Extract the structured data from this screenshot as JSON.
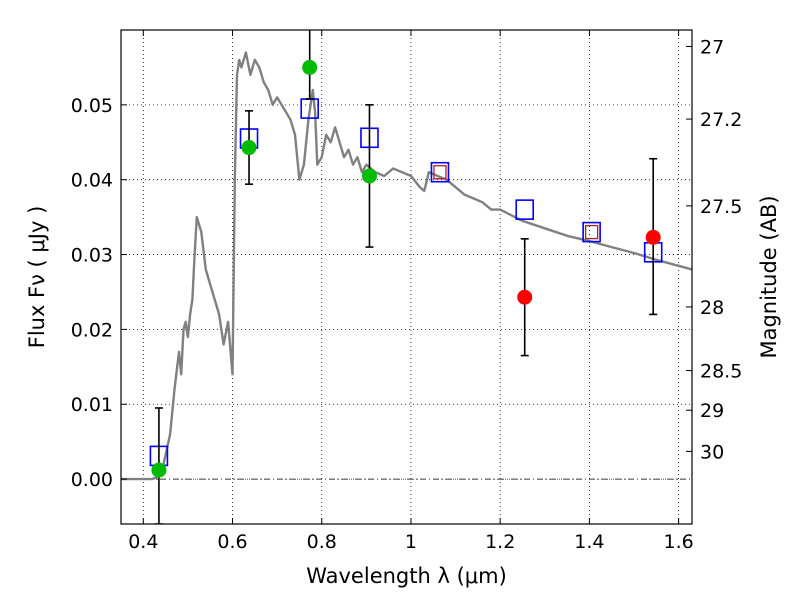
{
  "chart_data": {
    "type": "scatter",
    "xlabel": "Wavelength  λ (μm)",
    "ylabel": "Flux  Fν  ( μJy )",
    "ylabel_right": "Magnitude (AB)",
    "xlim": [
      0.35,
      1.63
    ],
    "ylim": [
      -0.006,
      0.06
    ],
    "grid": true,
    "x_ticks": [
      0.4,
      0.6,
      0.8,
      1.0,
      1.2,
      1.4,
      1.6
    ],
    "x_tick_labels": [
      "0.4",
      "0.6",
      "0.8",
      "1",
      "1.2",
      "1.4",
      "1.6"
    ],
    "y_ticks": [
      0.0,
      0.01,
      0.02,
      0.03,
      0.04,
      0.05
    ],
    "y_tick_labels": [
      "0.00",
      "0.01",
      "0.02",
      "0.03",
      "0.04",
      "0.05"
    ],
    "magnitude_ticks": [
      {
        "label": "27",
        "flux": 0.0578
      },
      {
        "label": "27.2",
        "flux": 0.0481
      },
      {
        "label": "27.5",
        "flux": 0.0365
      },
      {
        "label": "28",
        "flux": 0.023
      },
      {
        "label": "28.5",
        "flux": 0.0145
      },
      {
        "label": "29",
        "flux": 0.0092
      },
      {
        "label": "30",
        "flux": 0.0037
      }
    ],
    "series": [
      {
        "kind": "line",
        "color": "#808080",
        "x": [
          0.35,
          0.42,
          0.44,
          0.46,
          0.47,
          0.48,
          0.485,
          0.49,
          0.495,
          0.5,
          0.505,
          0.51,
          0.515,
          0.52,
          0.53,
          0.54,
          0.55,
          0.56,
          0.57,
          0.58,
          0.59,
          0.6,
          0.605,
          0.61,
          0.615,
          0.62,
          0.63,
          0.64,
          0.65,
          0.66,
          0.67,
          0.68,
          0.69,
          0.7,
          0.71,
          0.72,
          0.73,
          0.74,
          0.75,
          0.76,
          0.77,
          0.78,
          0.785,
          0.79,
          0.8,
          0.81,
          0.82,
          0.83,
          0.84,
          0.85,
          0.86,
          0.87,
          0.88,
          0.89,
          0.9,
          0.92,
          0.94,
          0.96,
          0.98,
          1.0,
          1.02,
          1.03,
          1.04,
          1.06,
          1.08,
          1.1,
          1.12,
          1.14,
          1.16,
          1.18,
          1.2,
          1.25,
          1.3,
          1.35,
          1.4,
          1.45,
          1.5,
          1.55,
          1.6,
          1.63
        ],
        "y": [
          0.0,
          0.0,
          0.0005,
          0.006,
          0.012,
          0.017,
          0.014,
          0.02,
          0.021,
          0.019,
          0.022,
          0.024,
          0.03,
          0.035,
          0.033,
          0.028,
          0.026,
          0.024,
          0.022,
          0.018,
          0.021,
          0.014,
          0.04,
          0.054,
          0.056,
          0.055,
          0.057,
          0.054,
          0.056,
          0.055,
          0.053,
          0.052,
          0.05,
          0.051,
          0.05,
          0.049,
          0.048,
          0.046,
          0.04,
          0.042,
          0.048,
          0.052,
          0.049,
          0.042,
          0.043,
          0.046,
          0.045,
          0.047,
          0.045,
          0.043,
          0.044,
          0.042,
          0.043,
          0.041,
          0.042,
          0.041,
          0.0405,
          0.0415,
          0.041,
          0.0405,
          0.039,
          0.0385,
          0.041,
          0.0405,
          0.04,
          0.039,
          0.038,
          0.0375,
          0.037,
          0.036,
          0.036,
          0.0345,
          0.0335,
          0.0325,
          0.0318,
          0.031,
          0.0302,
          0.0293,
          0.0285,
          0.028
        ]
      },
      {
        "kind": "open-square",
        "color": "#0000ff",
        "x": [
          0.435,
          0.637,
          0.773,
          0.907,
          1.065,
          1.255,
          1.405,
          1.543
        ],
        "y": [
          0.0031,
          0.0455,
          0.0495,
          0.0456,
          0.041,
          0.036,
          0.033,
          0.0303
        ]
      },
      {
        "kind": "open-square-small",
        "color": "#b22222",
        "x": [
          1.065,
          1.405
        ],
        "y": [
          0.041,
          0.033
        ]
      },
      {
        "kind": "point-with-errorbar",
        "color": "#00bb00",
        "x": [
          0.435,
          0.637,
          0.773,
          0.907
        ],
        "y": [
          0.0012,
          0.0443,
          0.055,
          0.0405
        ],
        "yerr_low": [
          0.0072,
          0.0049,
          0.0042,
          0.0095
        ],
        "yerr_high": [
          0.0083,
          0.0049,
          0.0083,
          0.0095
        ]
      },
      {
        "kind": "point-with-errorbar",
        "color": "#ff0000",
        "x": [
          1.255,
          1.543
        ],
        "y": [
          0.0243,
          0.0323
        ],
        "yerr_low": [
          0.0078,
          0.0103
        ],
        "yerr_high": [
          0.0078,
          0.0105
        ]
      }
    ]
  }
}
